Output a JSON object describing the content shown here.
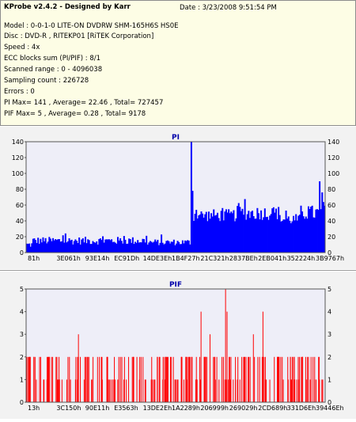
{
  "info": {
    "title": "KProbe v2.4.2 - Designed by Karr",
    "date": "Date : 3/23/2008 9:51:54 PM",
    "lines": [
      "Model : 0-0-1-0 LITE-ON DVDRW SHM-165H6S HS0E",
      "Disc : DVD-R , RITEKP01 [RiTEK Corporation]",
      "Speed : 4x",
      "ECC blocks sum (PI/PIF) : 8/1",
      "Scanned range : 0 - 4096038",
      "Sampling count : 226728",
      "Errors : 0",
      "PI Max= 141 , Average= 22.46 , Total= 727457",
      "PIF Max= 5 , Average= 0.28 , Total= 9178"
    ]
  },
  "colors": {
    "series": "#0000ff",
    "pif_series": "#ff0000",
    "plot_bg": "#eeeef8",
    "title": "#0000aa"
  },
  "chart_data": [
    {
      "type": "area",
      "title": "PI",
      "xlabel": "",
      "ylabel": "",
      "ylim": [
        0,
        140
      ],
      "yticks": [
        0,
        20,
        40,
        60,
        80,
        100,
        120,
        140
      ],
      "x_ticks": [
        "81h",
        "3E061h",
        "93E14h",
        "EC91Dh",
        "14DE3Eh",
        "1B4F27h",
        "21C321h",
        "2837BEh",
        "2EB041h",
        "352224h",
        "3B9767h"
      ],
      "grid": false,
      "segments": [
        {
          "from": 0.0,
          "to": 0.02,
          "base": 10,
          "noise": 4
        },
        {
          "from": 0.02,
          "to": 0.2,
          "base": 15,
          "noise": 5
        },
        {
          "from": 0.2,
          "to": 0.4,
          "base": 15,
          "noise": 5
        },
        {
          "from": 0.4,
          "to": 0.55,
          "base": 13,
          "noise": 4
        },
        {
          "from": 0.55,
          "to": 0.555,
          "base": 45,
          "noise": 10
        },
        {
          "from": 0.555,
          "to": 0.7,
          "base": 47,
          "noise": 8
        },
        {
          "from": 0.7,
          "to": 0.85,
          "base": 50,
          "noise": 9
        },
        {
          "from": 0.85,
          "to": 0.92,
          "base": 42,
          "noise": 7
        },
        {
          "from": 0.92,
          "to": 1.0,
          "base": 50,
          "noise": 10
        }
      ],
      "peaks": [
        {
          "x": 0.553,
          "y": 141
        },
        {
          "x": 0.556,
          "y": 78
        },
        {
          "x": 0.985,
          "y": 90
        },
        {
          "x": 0.99,
          "y": 76
        }
      ],
      "series": [
        {
          "name": "PI",
          "max": 141,
          "average": 22.46
        }
      ]
    },
    {
      "type": "bar",
      "title": "PIF",
      "xlabel": "",
      "ylabel": "",
      "ylim": [
        0,
        5
      ],
      "yticks": [
        0,
        1,
        2,
        3,
        4,
        5
      ],
      "x_ticks": [
        "13h",
        "3C150h",
        "90E11h",
        "E3563h",
        "13DE2Eh",
        "1A2289h",
        "206999h",
        "269029h",
        "2CD689h",
        "331D6Eh",
        "39446Eh"
      ],
      "grid": false,
      "spikes": [
        {
          "x": 0.03,
          "y": 2
        },
        {
          "x": 0.045,
          "y": 2
        },
        {
          "x": 0.06,
          "y": 1
        },
        {
          "x": 0.075,
          "y": 2
        },
        {
          "x": 0.1,
          "y": 2
        },
        {
          "x": 0.12,
          "y": 1
        },
        {
          "x": 0.14,
          "y": 2
        },
        {
          "x": 0.165,
          "y": 1
        },
        {
          "x": 0.175,
          "y": 3
        },
        {
          "x": 0.2,
          "y": 2
        },
        {
          "x": 0.22,
          "y": 1
        },
        {
          "x": 0.245,
          "y": 2
        },
        {
          "x": 0.27,
          "y": 2
        },
        {
          "x": 0.29,
          "y": 1
        },
        {
          "x": 0.31,
          "y": 2
        },
        {
          "x": 0.335,
          "y": 1
        },
        {
          "x": 0.36,
          "y": 2
        },
        {
          "x": 0.38,
          "y": 2
        },
        {
          "x": 0.4,
          "y": 1
        },
        {
          "x": 0.42,
          "y": 2
        },
        {
          "x": 0.445,
          "y": 2
        },
        {
          "x": 0.465,
          "y": 1
        },
        {
          "x": 0.485,
          "y": 2
        },
        {
          "x": 0.505,
          "y": 1
        },
        {
          "x": 0.52,
          "y": 2
        },
        {
          "x": 0.54,
          "y": 2
        },
        {
          "x": 0.555,
          "y": 2
        },
        {
          "x": 0.57,
          "y": 1
        },
        {
          "x": 0.585,
          "y": 4
        },
        {
          "x": 0.6,
          "y": 2
        },
        {
          "x": 0.615,
          "y": 3
        },
        {
          "x": 0.63,
          "y": 2
        },
        {
          "x": 0.645,
          "y": 1
        },
        {
          "x": 0.655,
          "y": 2
        },
        {
          "x": 0.667,
          "y": 5
        },
        {
          "x": 0.672,
          "y": 4
        },
        {
          "x": 0.685,
          "y": 2
        },
        {
          "x": 0.7,
          "y": 2
        },
        {
          "x": 0.715,
          "y": 1
        },
        {
          "x": 0.73,
          "y": 2
        },
        {
          "x": 0.745,
          "y": 2
        },
        {
          "x": 0.76,
          "y": 3
        },
        {
          "x": 0.775,
          "y": 2
        },
        {
          "x": 0.792,
          "y": 4
        },
        {
          "x": 0.8,
          "y": 2
        },
        {
          "x": 0.815,
          "y": 1
        },
        {
          "x": 0.83,
          "y": 2
        },
        {
          "x": 0.845,
          "y": 2
        },
        {
          "x": 0.86,
          "y": 1
        },
        {
          "x": 0.875,
          "y": 2
        },
        {
          "x": 0.89,
          "y": 2
        },
        {
          "x": 0.905,
          "y": 1
        },
        {
          "x": 0.92,
          "y": 2
        },
        {
          "x": 0.935,
          "y": 2
        },
        {
          "x": 0.95,
          "y": 1
        },
        {
          "x": 0.965,
          "y": 2
        },
        {
          "x": 0.98,
          "y": 2
        },
        {
          "x": 0.992,
          "y": 1
        }
      ],
      "series": [
        {
          "name": "PIF",
          "max": 5,
          "average": 0.28
        }
      ]
    }
  ]
}
